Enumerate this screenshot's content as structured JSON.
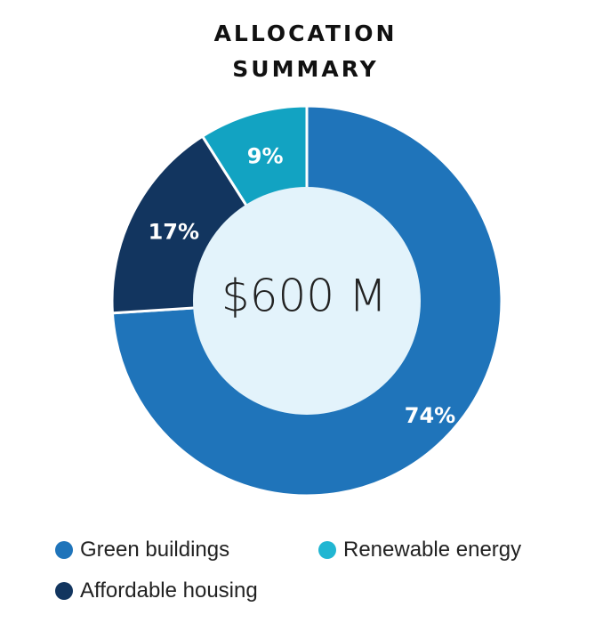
{
  "chart_data": {
    "type": "pie",
    "title_line1": "ALLOCATION",
    "title_line2": "SUMMARY",
    "center_label": "$600 M",
    "slices": [
      {
        "name": "Green buildings",
        "value": 74,
        "label": "74%",
        "color": "#1f74ba"
      },
      {
        "name": "Affordable housing",
        "value": 17,
        "label": "17%",
        "color": "#12355f"
      },
      {
        "name": "Renewable energy",
        "value": 9,
        "label": "9%",
        "color": "#12a3c2"
      }
    ],
    "hole_color": "#e3f3fb",
    "legend_position": "bottom"
  },
  "legend": [
    {
      "label": "Green buildings",
      "color": "#1f74ba"
    },
    {
      "label": "Renewable energy",
      "color": "#21b6d2"
    },
    {
      "label": "Affordable housing",
      "color": "#12355f"
    }
  ]
}
